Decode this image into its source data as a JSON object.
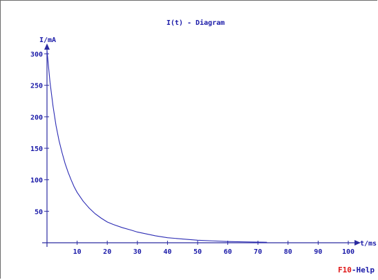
{
  "chart_data": {
    "type": "line",
    "title": "I(t) - Diagram",
    "xlabel": "t/ms",
    "ylabel": "I/mA",
    "xlim": [
      0,
      100
    ],
    "ylim": [
      0,
      300
    ],
    "x_ticks": [
      10,
      20,
      30,
      40,
      50,
      60,
      70,
      80,
      90,
      100
    ],
    "y_ticks": [
      50,
      100,
      150,
      200,
      250,
      300
    ],
    "grid": false,
    "series": [
      {
        "color": "#2b2bb4",
        "x": [
          0,
          1,
          2,
          3,
          4,
          5,
          6,
          7,
          8,
          9,
          10,
          12,
          14,
          16,
          18,
          20,
          22,
          25,
          28,
          30,
          33,
          36,
          40,
          45,
          50,
          55,
          60,
          65,
          70,
          73
        ],
        "y": [
          305,
          255,
          217,
          186,
          162,
          143,
          126,
          112,
          100,
          89,
          80,
          66,
          55,
          46,
          39,
          33,
          29,
          24,
          20,
          17,
          14,
          11,
          8,
          6,
          4,
          3,
          2,
          1.5,
          1,
          0.8
        ]
      }
    ],
    "colors": {
      "axis": "#2a2aa0",
      "text": "#1a1aa8",
      "curve": "#2b2bb4"
    }
  },
  "footer": {
    "help_key": "F10",
    "help_text": "-Help"
  }
}
